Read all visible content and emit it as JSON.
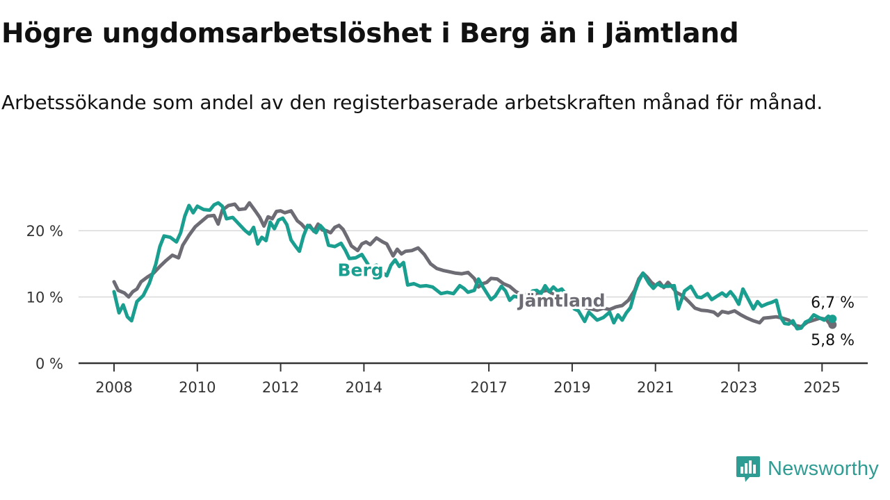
{
  "title": "Högre ungdomsarbetslöshet i Berg än i Jämtland",
  "subtitle": "Arbetssökande som andel av den registerbaserade arbetskraften månad för månad.",
  "logo": {
    "text": "Newsworthy",
    "icon": "newsworthy-bar-chart-icon"
  },
  "colors": {
    "berg": "#1a9e8f",
    "jamtland": "#6d6b73",
    "grid": "#d9d9d9",
    "axis": "#333333"
  },
  "chart_data": {
    "type": "line",
    "ylim": [
      0,
      26
    ],
    "yticks": [
      {
        "value": 0,
        "label": "0 %"
      },
      {
        "value": 10,
        "label": "10 %"
      },
      {
        "value": 20,
        "label": "20 %"
      }
    ],
    "xlim": [
      2007.75,
      2026.1
    ],
    "xticks": [
      {
        "value": 2008,
        "label": "2008"
      },
      {
        "value": 2010,
        "label": "2010"
      },
      {
        "value": 2012,
        "label": "2012"
      },
      {
        "value": 2014,
        "label": "2014"
      },
      {
        "value": 2017,
        "label": "2017"
      },
      {
        "value": 2019,
        "label": "2019"
      },
      {
        "value": 2021,
        "label": "2021"
      },
      {
        "value": 2023,
        "label": "2023"
      },
      {
        "value": 2025,
        "label": "2025"
      }
    ],
    "grid": true,
    "series": [
      {
        "name": "Jämtland",
        "label_at": [
          2018.75,
          9.5
        ],
        "end_label": "5,8 %",
        "points": [
          [
            2008.0,
            12.3
          ],
          [
            2008.1,
            11.0
          ],
          [
            2008.25,
            10.6
          ],
          [
            2008.35,
            10.0
          ],
          [
            2008.45,
            10.8
          ],
          [
            2008.55,
            11.2
          ],
          [
            2008.65,
            12.3
          ],
          [
            2008.8,
            13.0
          ],
          [
            2008.95,
            13.6
          ],
          [
            2009.1,
            14.6
          ],
          [
            2009.25,
            15.5
          ],
          [
            2009.4,
            16.3
          ],
          [
            2009.55,
            15.9
          ],
          [
            2009.65,
            17.8
          ],
          [
            2009.8,
            19.3
          ],
          [
            2009.95,
            20.6
          ],
          [
            2010.1,
            21.4
          ],
          [
            2010.25,
            22.2
          ],
          [
            2010.4,
            22.3
          ],
          [
            2010.5,
            21.0
          ],
          [
            2010.6,
            23.1
          ],
          [
            2010.75,
            23.8
          ],
          [
            2010.9,
            24.0
          ],
          [
            2011.0,
            23.2
          ],
          [
            2011.15,
            23.3
          ],
          [
            2011.25,
            24.2
          ],
          [
            2011.4,
            22.9
          ],
          [
            2011.5,
            22.0
          ],
          [
            2011.6,
            20.7
          ],
          [
            2011.7,
            22.1
          ],
          [
            2011.8,
            21.8
          ],
          [
            2011.9,
            22.9
          ],
          [
            2012.0,
            23.0
          ],
          [
            2012.1,
            22.7
          ],
          [
            2012.25,
            23.0
          ],
          [
            2012.4,
            21.5
          ],
          [
            2012.5,
            21.0
          ],
          [
            2012.6,
            20.3
          ],
          [
            2012.7,
            20.8
          ],
          [
            2012.8,
            19.9
          ],
          [
            2012.9,
            21.0
          ],
          [
            2013.0,
            20.1
          ],
          [
            2013.1,
            20.0
          ],
          [
            2013.2,
            19.7
          ],
          [
            2013.3,
            20.5
          ],
          [
            2013.4,
            20.8
          ],
          [
            2013.5,
            20.2
          ],
          [
            2013.6,
            19.0
          ],
          [
            2013.7,
            17.7
          ],
          [
            2013.85,
            17.0
          ],
          [
            2013.95,
            18.0
          ],
          [
            2014.05,
            18.3
          ],
          [
            2014.15,
            17.9
          ],
          [
            2014.3,
            18.9
          ],
          [
            2014.45,
            18.3
          ],
          [
            2014.55,
            18.0
          ],
          [
            2014.7,
            16.2
          ],
          [
            2014.8,
            17.2
          ],
          [
            2014.9,
            16.5
          ],
          [
            2015.0,
            16.9
          ],
          [
            2015.15,
            17.0
          ],
          [
            2015.3,
            17.4
          ],
          [
            2015.45,
            16.4
          ],
          [
            2015.6,
            15.0
          ],
          [
            2015.75,
            14.3
          ],
          [
            2015.9,
            14.0
          ],
          [
            2016.05,
            13.8
          ],
          [
            2016.2,
            13.6
          ],
          [
            2016.35,
            13.5
          ],
          [
            2016.5,
            13.7
          ],
          [
            2016.65,
            12.8
          ],
          [
            2016.75,
            11.5
          ],
          [
            2016.85,
            12.0
          ],
          [
            2016.95,
            12.2
          ],
          [
            2017.05,
            12.8
          ],
          [
            2017.2,
            12.7
          ],
          [
            2017.35,
            12.0
          ],
          [
            2017.5,
            11.6
          ],
          [
            2017.65,
            10.8
          ],
          [
            2017.8,
            10.3
          ],
          [
            2017.95,
            10.4
          ],
          [
            2018.1,
            10.2
          ],
          [
            2018.25,
            10.8
          ],
          [
            2018.4,
            11.0
          ],
          [
            2018.55,
            10.4
          ],
          [
            2018.7,
            9.6
          ],
          [
            2018.85,
            9.2
          ],
          [
            2019.0,
            8.8
          ],
          [
            2019.15,
            8.7
          ],
          [
            2019.3,
            8.4
          ],
          [
            2019.45,
            8.2
          ],
          [
            2019.6,
            8.0
          ],
          [
            2019.75,
            8.3
          ],
          [
            2019.9,
            8.1
          ],
          [
            2020.05,
            8.5
          ],
          [
            2020.2,
            8.7
          ],
          [
            2020.35,
            9.5
          ],
          [
            2020.5,
            11.0
          ],
          [
            2020.6,
            12.7
          ],
          [
            2020.7,
            13.6
          ],
          [
            2020.8,
            13.0
          ],
          [
            2020.9,
            12.2
          ],
          [
            2021.0,
            11.7
          ],
          [
            2021.1,
            12.2
          ],
          [
            2021.2,
            11.4
          ],
          [
            2021.3,
            12.2
          ],
          [
            2021.4,
            11.5
          ],
          [
            2021.5,
            10.7
          ],
          [
            2021.65,
            10.2
          ],
          [
            2021.8,
            9.3
          ],
          [
            2021.95,
            8.3
          ],
          [
            2022.1,
            8.0
          ],
          [
            2022.25,
            7.9
          ],
          [
            2022.4,
            7.7
          ],
          [
            2022.5,
            7.2
          ],
          [
            2022.6,
            7.8
          ],
          [
            2022.75,
            7.6
          ],
          [
            2022.9,
            7.9
          ],
          [
            2023.05,
            7.3
          ],
          [
            2023.2,
            6.8
          ],
          [
            2023.35,
            6.4
          ],
          [
            2023.5,
            6.1
          ],
          [
            2023.6,
            6.8
          ],
          [
            2023.75,
            6.9
          ],
          [
            2023.9,
            7.0
          ],
          [
            2024.05,
            6.8
          ],
          [
            2024.2,
            6.5
          ],
          [
            2024.35,
            5.7
          ],
          [
            2024.5,
            5.5
          ],
          [
            2024.65,
            6.2
          ],
          [
            2024.8,
            6.5
          ],
          [
            2024.95,
            6.8
          ],
          [
            2025.1,
            6.6
          ],
          [
            2025.2,
            5.8
          ],
          [
            2025.25,
            5.8
          ]
        ]
      },
      {
        "name": "Berg",
        "label_at": [
          2013.92,
          14.1
        ],
        "end_label": "6,7 %",
        "points": [
          [
            2008.0,
            10.8
          ],
          [
            2008.12,
            7.6
          ],
          [
            2008.22,
            8.8
          ],
          [
            2008.32,
            7.0
          ],
          [
            2008.42,
            6.4
          ],
          [
            2008.55,
            9.3
          ],
          [
            2008.7,
            10.2
          ],
          [
            2008.85,
            12.1
          ],
          [
            2009.0,
            14.9
          ],
          [
            2009.1,
            17.6
          ],
          [
            2009.2,
            19.2
          ],
          [
            2009.35,
            19.0
          ],
          [
            2009.5,
            18.3
          ],
          [
            2009.6,
            19.7
          ],
          [
            2009.7,
            22.2
          ],
          [
            2009.8,
            23.8
          ],
          [
            2009.9,
            22.7
          ],
          [
            2010.0,
            23.7
          ],
          [
            2010.15,
            23.2
          ],
          [
            2010.3,
            23.1
          ],
          [
            2010.4,
            23.9
          ],
          [
            2010.5,
            24.2
          ],
          [
            2010.6,
            23.7
          ],
          [
            2010.7,
            21.8
          ],
          [
            2010.85,
            22.0
          ],
          [
            2011.0,
            21.0
          ],
          [
            2011.15,
            20.0
          ],
          [
            2011.25,
            19.5
          ],
          [
            2011.35,
            20.5
          ],
          [
            2011.45,
            18.0
          ],
          [
            2011.55,
            19.0
          ],
          [
            2011.65,
            18.5
          ],
          [
            2011.75,
            21.3
          ],
          [
            2011.85,
            20.3
          ],
          [
            2011.95,
            21.6
          ],
          [
            2012.05,
            21.9
          ],
          [
            2012.15,
            20.9
          ],
          [
            2012.25,
            18.6
          ],
          [
            2012.35,
            17.7
          ],
          [
            2012.45,
            16.9
          ],
          [
            2012.55,
            19.2
          ],
          [
            2012.65,
            20.8
          ],
          [
            2012.75,
            20.3
          ],
          [
            2012.85,
            19.7
          ],
          [
            2012.95,
            20.8
          ],
          [
            2013.05,
            20.1
          ],
          [
            2013.15,
            17.8
          ],
          [
            2013.3,
            17.6
          ],
          [
            2013.45,
            18.1
          ],
          [
            2013.55,
            17.1
          ],
          [
            2013.65,
            15.8
          ],
          [
            2013.8,
            15.9
          ],
          [
            2013.95,
            16.4
          ],
          [
            2014.05,
            15.4
          ],
          [
            2014.15,
            14.4
          ],
          [
            2014.3,
            14.8
          ],
          [
            2014.4,
            13.9
          ],
          [
            2014.55,
            13.2
          ],
          [
            2014.65,
            14.8
          ],
          [
            2014.75,
            15.6
          ],
          [
            2014.85,
            14.6
          ],
          [
            2014.95,
            15.2
          ],
          [
            2015.05,
            11.8
          ],
          [
            2015.2,
            12.0
          ],
          [
            2015.35,
            11.6
          ],
          [
            2015.5,
            11.7
          ],
          [
            2015.65,
            11.5
          ],
          [
            2015.75,
            11.0
          ],
          [
            2015.85,
            10.5
          ],
          [
            2016.0,
            10.7
          ],
          [
            2016.15,
            10.5
          ],
          [
            2016.3,
            11.7
          ],
          [
            2016.4,
            11.3
          ],
          [
            2016.5,
            10.7
          ],
          [
            2016.65,
            11.0
          ],
          [
            2016.75,
            12.7
          ],
          [
            2016.85,
            11.6
          ],
          [
            2016.95,
            10.6
          ],
          [
            2017.05,
            9.6
          ],
          [
            2017.15,
            10.1
          ],
          [
            2017.3,
            11.6
          ],
          [
            2017.4,
            10.9
          ],
          [
            2017.5,
            9.5
          ],
          [
            2017.6,
            10.1
          ],
          [
            2017.75,
            9.9
          ],
          [
            2017.85,
            9.0
          ],
          [
            2017.95,
            10.3
          ],
          [
            2018.05,
            10.9
          ],
          [
            2018.15,
            11.0
          ],
          [
            2018.25,
            10.5
          ],
          [
            2018.35,
            11.7
          ],
          [
            2018.45,
            10.8
          ],
          [
            2018.55,
            11.5
          ],
          [
            2018.65,
            10.9
          ],
          [
            2018.75,
            11.2
          ],
          [
            2018.8,
            10.8
          ],
          [
            2019.05,
            8.2
          ],
          [
            2019.15,
            7.9
          ],
          [
            2019.3,
            6.3
          ],
          [
            2019.4,
            7.7
          ],
          [
            2019.5,
            7.1
          ],
          [
            2019.6,
            6.5
          ],
          [
            2019.75,
            6.9
          ],
          [
            2019.9,
            7.7
          ],
          [
            2020.0,
            6.1
          ],
          [
            2020.1,
            7.3
          ],
          [
            2020.2,
            6.5
          ],
          [
            2020.3,
            7.6
          ],
          [
            2020.4,
            8.4
          ],
          [
            2020.5,
            10.7
          ],
          [
            2020.6,
            12.4
          ],
          [
            2020.7,
            13.6
          ],
          [
            2020.85,
            12.0
          ],
          [
            2020.95,
            11.3
          ],
          [
            2021.05,
            12.0
          ],
          [
            2021.15,
            11.6
          ],
          [
            2021.3,
            11.6
          ],
          [
            2021.45,
            11.7
          ],
          [
            2021.55,
            8.2
          ],
          [
            2021.7,
            10.9
          ],
          [
            2021.85,
            11.6
          ],
          [
            2022.0,
            10.0
          ],
          [
            2022.1,
            9.9
          ],
          [
            2022.25,
            10.5
          ],
          [
            2022.35,
            9.6
          ],
          [
            2022.5,
            10.2
          ],
          [
            2022.6,
            10.6
          ],
          [
            2022.7,
            10.1
          ],
          [
            2022.8,
            10.8
          ],
          [
            2022.9,
            10.0
          ],
          [
            2023.0,
            8.9
          ],
          [
            2023.1,
            11.2
          ],
          [
            2023.2,
            10.0
          ],
          [
            2023.35,
            8.2
          ],
          [
            2023.45,
            9.3
          ],
          [
            2023.55,
            8.6
          ],
          [
            2023.7,
            9.0
          ],
          [
            2023.8,
            9.2
          ],
          [
            2023.9,
            9.5
          ],
          [
            2024.0,
            7.0
          ],
          [
            2024.1,
            6.0
          ],
          [
            2024.2,
            5.9
          ],
          [
            2024.3,
            6.4
          ],
          [
            2024.4,
            5.2
          ],
          [
            2024.5,
            5.3
          ],
          [
            2024.6,
            6.2
          ],
          [
            2024.7,
            6.5
          ],
          [
            2024.8,
            7.3
          ],
          [
            2024.95,
            6.8
          ],
          [
            2025.05,
            6.5
          ],
          [
            2025.15,
            7.1
          ],
          [
            2025.25,
            6.7
          ]
        ]
      }
    ]
  }
}
